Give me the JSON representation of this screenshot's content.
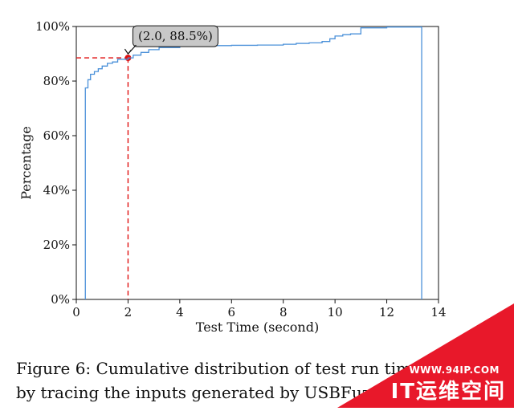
{
  "chart_data": {
    "type": "line",
    "step": true,
    "xlabel": "Test Time (second)",
    "ylabel": "Percentage",
    "xlim": [
      0,
      14
    ],
    "ylim": [
      0,
      100
    ],
    "x_ticks": [
      0,
      2,
      4,
      6,
      8,
      10,
      12,
      14
    ],
    "y_ticks": [
      "0%",
      "20%",
      "40%",
      "60%",
      "80%",
      "100%"
    ],
    "y_tick_values": [
      0,
      20,
      40,
      60,
      80,
      100
    ],
    "grid": false,
    "line_color": "#4a90d9",
    "marker_color": "#e01010",
    "series": [
      {
        "x": [
          0.35,
          0.35,
          0.45,
          0.55,
          0.7,
          0.85,
          1.0,
          1.2,
          1.4,
          1.6,
          2.0,
          2.2,
          2.5,
          2.8,
          3.2,
          4.0,
          5.0,
          6.0,
          7.0,
          8.0,
          8.5,
          9.0,
          9.5,
          9.8,
          10.0,
          10.3,
          10.6,
          11.0,
          12.0,
          13.35,
          13.35
        ],
        "y": [
          0,
          77.5,
          80.5,
          82.5,
          83.5,
          84.5,
          85.5,
          86.5,
          87.0,
          88.0,
          88.5,
          89.5,
          90.5,
          91.5,
          92.3,
          92.8,
          93.0,
          93.1,
          93.2,
          93.5,
          93.8,
          94.0,
          94.5,
          95.5,
          96.5,
          97.0,
          97.3,
          99.5,
          99.8,
          100,
          0
        ]
      }
    ],
    "annotation": {
      "text": "(2.0, 88.5%)",
      "x": 2.0,
      "y": 88.5
    }
  },
  "caption": {
    "line1": "Figure 6: Cumulative distribution of test run time",
    "line2": "by tracing the inputs generated by USBFuzz"
  },
  "watermark": {
    "url": "WWW.94IP.COM",
    "brand": "IT运维空间",
    "color": "#e8182a"
  }
}
